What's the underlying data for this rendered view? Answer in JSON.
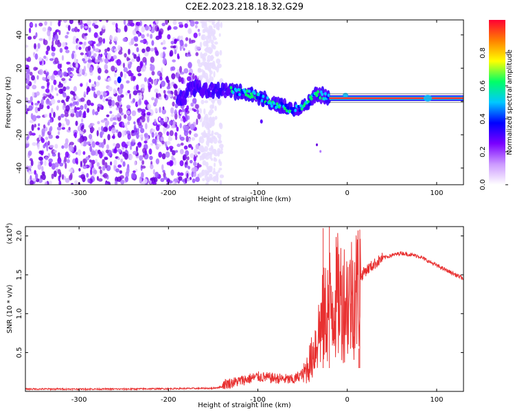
{
  "page_title": "C2E2.2023.218.18.32.G29",
  "colors": {
    "snr_line": "#e83030",
    "axis": "#000000",
    "background": "#ffffff"
  },
  "chart_data": [
    {
      "type": "heatmap",
      "title": "C2E2.2023.218.18.32.G29",
      "xlabel": "Height of straight line (km)",
      "ylabel": "Frequency (Hz)",
      "xlim": [
        -360,
        130
      ],
      "ylim": [
        -50,
        49
      ],
      "x_ticks": [
        -300,
        -200,
        -100,
        0,
        100
      ],
      "y_ticks": [
        -40,
        -20,
        0,
        20,
        40
      ],
      "x_tick_labels": [
        "-300",
        "-200",
        "-100",
        "0",
        "100"
      ],
      "y_tick_labels": [
        "-40",
        "-20",
        "0",
        "20",
        "40"
      ],
      "colorbar": {
        "label": "Normalized spectral amplitude",
        "range": [
          0.0,
          1.0
        ],
        "ticks": [
          0.0,
          0.2,
          0.4,
          0.6,
          0.8
        ],
        "tick_labels": [
          "0.0",
          "0.2",
          "0.4",
          "0.6",
          "0.8"
        ],
        "colormap": [
          "#ffffff",
          "#cc99ff",
          "#7a00ff",
          "#0000ff",
          "#00c8ff",
          "#00ff66",
          "#ffff00",
          "#ff8000",
          "#ff0033"
        ]
      },
      "features": {
        "noise_floor_extent_km": [
          -360,
          -150
        ],
        "signal_track": [
          {
            "x": -180,
            "y": 8
          },
          {
            "x": -150,
            "y": 7
          },
          {
            "x": -120,
            "y": 6
          },
          {
            "x": -100,
            "y": 3
          },
          {
            "x": -80,
            "y": -2
          },
          {
            "x": -60,
            "y": -5
          },
          {
            "x": -45,
            "y": -2
          },
          {
            "x": -35,
            "y": 5
          },
          {
            "x": -20,
            "y": 2
          },
          {
            "x": 0,
            "y": 2
          },
          {
            "x": 50,
            "y": 2
          },
          {
            "x": 90,
            "y": 2
          },
          {
            "x": 130,
            "y": 2
          }
        ]
      }
    },
    {
      "type": "line",
      "title": "",
      "xlabel": "Height of straight line (km)",
      "ylabel": "SNR (10 * v/v)",
      "y_multiplier_label": "(x10",
      "y_multiplier_exp": "4",
      "xlim": [
        -360,
        130
      ],
      "ylim": [
        0,
        2.12
      ],
      "x_ticks": [
        -300,
        -200,
        -100,
        0,
        100
      ],
      "y_ticks": [
        0.5,
        1.0,
        1.5,
        2.0
      ],
      "x_tick_labels": [
        "-300",
        "-200",
        "-100",
        "0",
        "100"
      ],
      "y_tick_labels": [
        "0.5",
        "1.0",
        "1.5",
        "2.0"
      ],
      "series": [
        {
          "name": "SNR",
          "envelope": [
            {
              "x": -360,
              "y": 0.03
            },
            {
              "x": -250,
              "y": 0.03
            },
            {
              "x": -150,
              "y": 0.04
            },
            {
              "x": -130,
              "y": 0.08
            },
            {
              "x": -100,
              "y": 0.16
            },
            {
              "x": -80,
              "y": 0.14
            },
            {
              "x": -60,
              "y": 0.12
            },
            {
              "x": -50,
              "y": 0.2
            },
            {
              "x": -40,
              "y": 0.45
            },
            {
              "x": -30,
              "y": 0.9
            },
            {
              "x": -20,
              "y": 1.2
            },
            {
              "x": -10,
              "y": 1.3
            },
            {
              "x": 0,
              "y": 1.25
            },
            {
              "x": 10,
              "y": 1.4
            },
            {
              "x": 20,
              "y": 1.55
            },
            {
              "x": 40,
              "y": 1.72
            },
            {
              "x": 60,
              "y": 1.78
            },
            {
              "x": 80,
              "y": 1.74
            },
            {
              "x": 100,
              "y": 1.62
            },
            {
              "x": 130,
              "y": 1.45
            }
          ],
          "spikes": [
            {
              "x": -27,
              "y": 2.1
            },
            {
              "x": -20,
              "y": 2.12
            },
            {
              "x": 14,
              "y": 2.08
            },
            {
              "x": 13,
              "y": 0.55
            }
          ]
        }
      ]
    }
  ]
}
